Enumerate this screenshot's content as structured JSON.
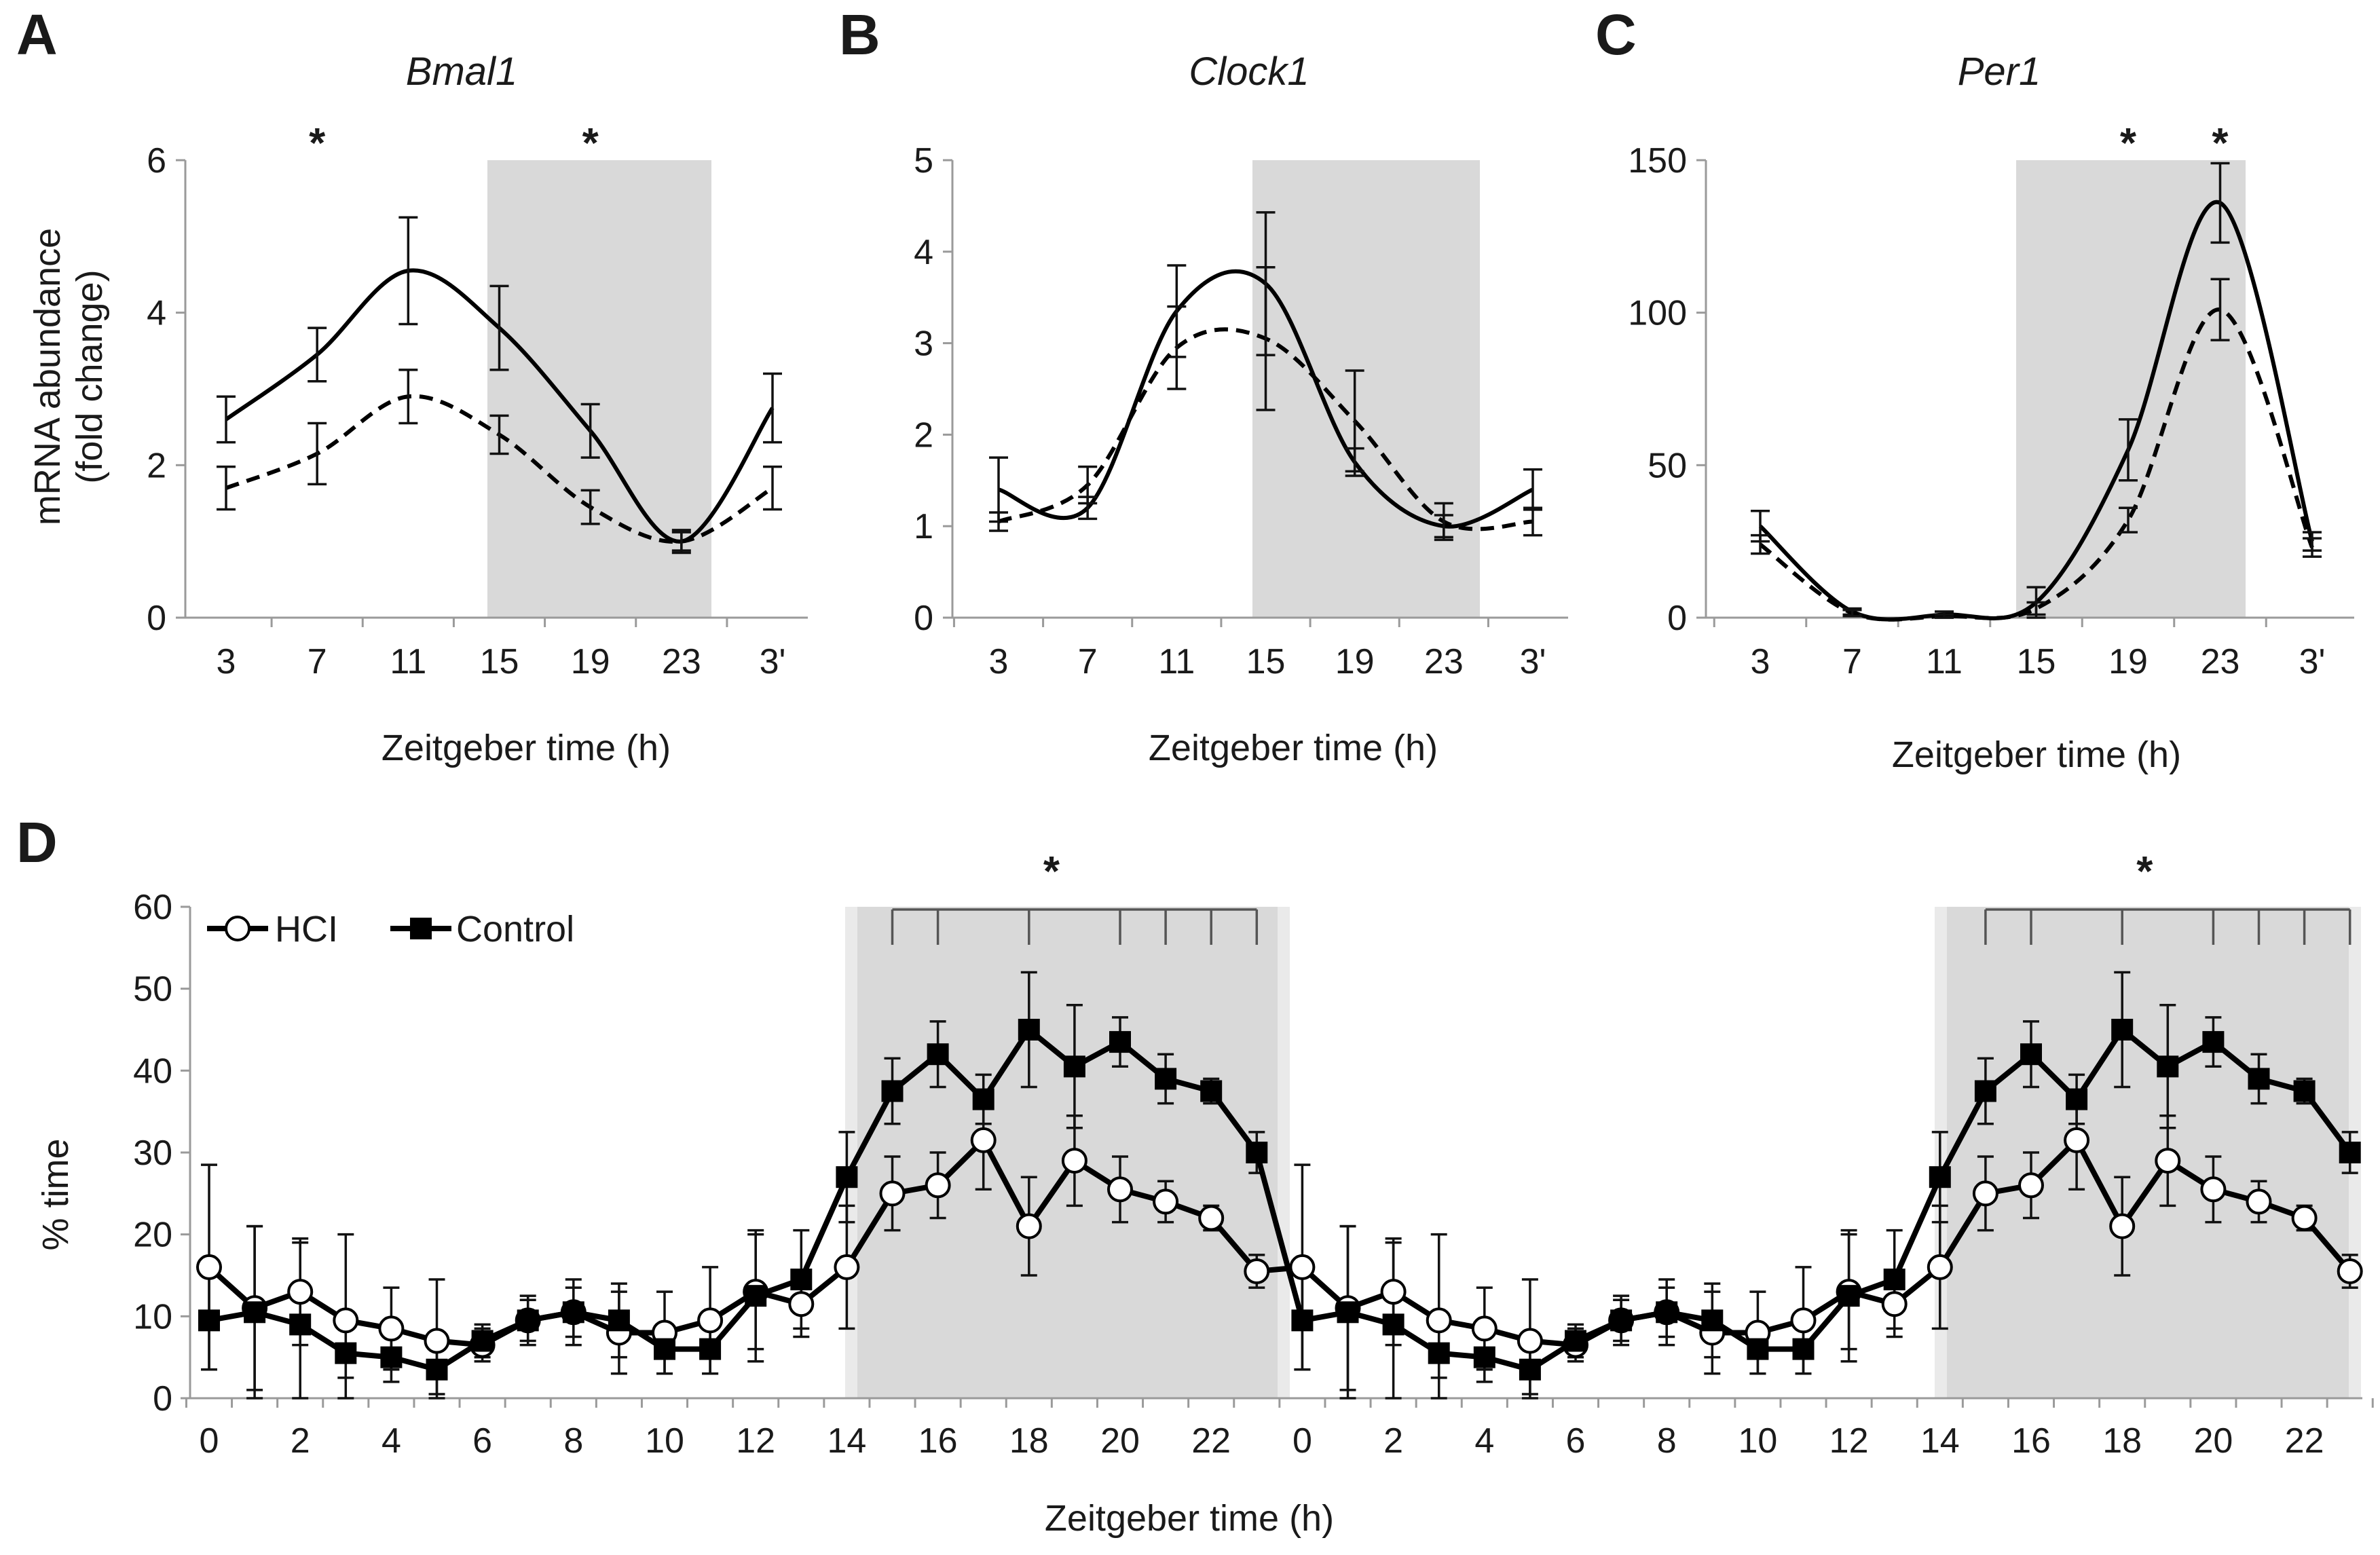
{
  "figure": {
    "panels": {
      "A": {
        "letter": "A",
        "title": "Bmal1"
      },
      "B": {
        "letter": "B",
        "title": "Clock1"
      },
      "C": {
        "letter": "C",
        "title": "Per1"
      },
      "D": {
        "letter": "D"
      }
    },
    "ylabel_top_line1": "mRNA abundance",
    "ylabel_top_line2": "(fold change)",
    "xlabel_top": "Zeitgeber  time (h)",
    "ylabel_bottom": "% time",
    "xlabel_bottom": "Zeitgeber time (h)",
    "legend": {
      "series1": "HCI",
      "series2": "Control"
    },
    "significance_mark": "*"
  },
  "chart_data": [
    {
      "panel": "A",
      "type": "line",
      "title": "Bmal1",
      "xlabel": "Zeitgeber  time (h)",
      "ylabel": "mRNA abundance (fold change)",
      "categories": [
        "3",
        "7",
        "11",
        "15",
        "19",
        "23",
        "3'"
      ],
      "ylim": [
        0,
        6
      ],
      "yticks": [
        0,
        2,
        4,
        6
      ],
      "dark_phase": [
        "14",
        "24"
      ],
      "significant_at": [
        "7",
        "19"
      ],
      "series": [
        {
          "style": "solid",
          "values": [
            2.6,
            3.45,
            4.55,
            3.8,
            2.45,
            1.0,
            2.75
          ],
          "errors": [
            0.3,
            0.35,
            0.7,
            0.55,
            0.35,
            0.15,
            0.45
          ]
        },
        {
          "style": "dashed",
          "values": [
            1.7,
            2.15,
            2.9,
            2.4,
            1.45,
            1.0,
            1.7
          ],
          "errors": [
            0.28,
            0.4,
            0.35,
            0.25,
            0.22,
            0.12,
            0.28
          ]
        }
      ]
    },
    {
      "panel": "B",
      "type": "line",
      "title": "Clock1",
      "xlabel": "Zeitgeber  time (h)",
      "categories": [
        "3",
        "7",
        "11",
        "15",
        "19",
        "23",
        "3'"
      ],
      "ylim": [
        0,
        5
      ],
      "yticks": [
        0,
        1,
        2,
        3,
        4,
        5
      ],
      "dark_phase": [
        "14",
        "24"
      ],
      "series": [
        {
          "style": "solid",
          "values": [
            1.4,
            1.2,
            3.35,
            3.65,
            1.7,
            1.0,
            1.4
          ],
          "errors": [
            0.35,
            0.12,
            0.5,
            0.78,
            0.15,
            0.12,
            0.22
          ]
        },
        {
          "style": "dashed",
          "values": [
            1.05,
            1.45,
            2.95,
            3.05,
            2.15,
            1.05,
            1.05
          ],
          "errors": [
            0.1,
            0.2,
            0.45,
            0.78,
            0.55,
            0.2,
            0.15
          ]
        }
      ]
    },
    {
      "panel": "C",
      "type": "line",
      "title": "Per1",
      "xlabel": "Zeitgeber  time (h)",
      "categories": [
        "3",
        "7",
        "11",
        "15",
        "19",
        "23",
        "3'"
      ],
      "ylim": [
        0,
        150
      ],
      "yticks": [
        0,
        50,
        100,
        150
      ],
      "dark_phase": [
        "14",
        "24"
      ],
      "significant_at": [
        "19",
        "23"
      ],
      "series": [
        {
          "style": "solid",
          "values": [
            30,
            2,
            1,
            5,
            55,
            136,
            25
          ],
          "errors": [
            5,
            1,
            1,
            5,
            10,
            13,
            3
          ]
        },
        {
          "style": "dashed",
          "values": [
            24,
            1.5,
            0.5,
            3,
            32,
            101,
            23
          ],
          "errors": [
            3,
            1,
            0.5,
            2,
            4,
            10,
            3
          ]
        }
      ]
    },
    {
      "panel": "D",
      "type": "line",
      "xlabel": "Zeitgeber time (h)",
      "ylabel": "% time",
      "x": [
        0,
        1,
        2,
        3,
        4,
        5,
        6,
        7,
        8,
        9,
        10,
        11,
        12,
        13,
        14,
        15,
        16,
        17,
        18,
        19,
        20,
        21,
        22,
        23,
        0,
        1,
        2,
        3,
        4,
        5,
        6,
        7,
        8,
        9,
        10,
        11,
        12,
        13,
        14,
        15,
        16,
        17,
        18,
        19,
        20,
        21,
        22,
        23
      ],
      "xtick_labels": [
        "0",
        "2",
        "4",
        "6",
        "8",
        "10",
        "12",
        "14",
        "16",
        "18",
        "20",
        "22",
        "0",
        "2",
        "4",
        "6",
        "8",
        "10",
        "12",
        "14",
        "16",
        "18",
        "20",
        "22"
      ],
      "ylim": [
        0,
        60
      ],
      "yticks": [
        0,
        10,
        20,
        30,
        40,
        50,
        60
      ],
      "dark_phase": [
        "14",
        "24"
      ],
      "significant_hours": [
        15,
        16,
        18,
        20,
        21,
        22,
        23
      ],
      "legend_position": "top-left",
      "series": [
        {
          "name": "HCI",
          "marker": "open-circle",
          "values": [
            16,
            11,
            13,
            9.5,
            8.5,
            7,
            6.5,
            9.5,
            10.5,
            8,
            8,
            9.5,
            13,
            11.5,
            16,
            25,
            26,
            31.5,
            21,
            29,
            25.5,
            24,
            22,
            15.5,
            16,
            11,
            13,
            9.5,
            8.5,
            7,
            6.5,
            9.5,
            10.5,
            8,
            8,
            9.5,
            13,
            11.5,
            16,
            25,
            26,
            31.5,
            21,
            29,
            25.5,
            24,
            22,
            15.5
          ],
          "errors": [
            12.5,
            10,
            6.5,
            10.5,
            5,
            7.5,
            2,
            3,
            4,
            5,
            5,
            6.5,
            7,
            4,
            7.5,
            4.5,
            4,
            6,
            6,
            5.5,
            4,
            2.5,
            1.5,
            2,
            12.5,
            10,
            6.5,
            10.5,
            5,
            7.5,
            2,
            3,
            4,
            5,
            5,
            6.5,
            7,
            4,
            7.5,
            4.5,
            4,
            6,
            6,
            5.5,
            4,
            2.5,
            1.5,
            2
          ]
        },
        {
          "name": "Control",
          "marker": "filled-square",
          "values": [
            9.5,
            10.5,
            9,
            5.5,
            5,
            3.5,
            7,
            9.5,
            10.5,
            9.5,
            6,
            6,
            12.5,
            14.5,
            27,
            37.5,
            42,
            36.5,
            45,
            40.5,
            43.5,
            39,
            37.5,
            30,
            9.5,
            10.5,
            9,
            5.5,
            5,
            3.5,
            7,
            9.5,
            10.5,
            9.5,
            6,
            6,
            12.5,
            14.5,
            27,
            37.5,
            42,
            36.5,
            45,
            40.5,
            43.5,
            39,
            37.5,
            30
          ],
          "errors": [
            6,
            10.5,
            10,
            3,
            3,
            3,
            2,
            2.5,
            3,
            4.5,
            3,
            3,
            8,
            6,
            5.5,
            4,
            4,
            3,
            7,
            7.5,
            3,
            3,
            1.5,
            2.5,
            6,
            10.5,
            10,
            3,
            3,
            3,
            2,
            2.5,
            3,
            4.5,
            3,
            3,
            8,
            6,
            5.5,
            4,
            4,
            3,
            7,
            7.5,
            3,
            3,
            1.5,
            2.5
          ]
        }
      ]
    }
  ]
}
